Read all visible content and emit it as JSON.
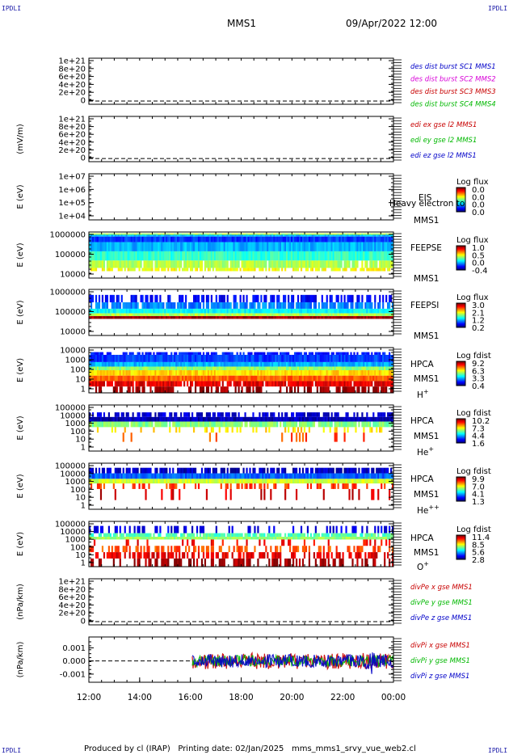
{
  "corner_labels": {
    "tl": "IPDLI",
    "tr": "IPDLI",
    "bl": "IPDLI",
    "br": "IPDLI"
  },
  "header": {
    "spacecraft": "MMS1",
    "datetime": "09/Apr/2022 12:00"
  },
  "footer": {
    "producer": "Produced by cl (IRAP)",
    "printing_date": "Printing date: 02/Jan/2025",
    "filename": "mms_mms1_srvy_vue_web2.cl"
  },
  "chart_data": [
    {
      "id": "p1",
      "type": "line",
      "ylabel": "",
      "yticks": [
        "1e+21",
        "8e+20",
        "6e+20",
        "4e+20",
        "2e+20",
        "0"
      ],
      "legend": [
        {
          "text": "des dist burst SC1 MMS1",
          "color": "#0000c8"
        },
        {
          "text": "des dist burst SC2 MMS2",
          "color": "#d800d8"
        },
        {
          "text": "des dist burst SC3 MMS3",
          "color": "#c80000"
        },
        {
          "text": "des dist burst SC4 MMS4",
          "color": "#00b800"
        }
      ]
    },
    {
      "id": "p2",
      "type": "line",
      "ylabel": "(mV/m)",
      "yticks": [
        "1e+21",
        "8e+20",
        "6e+20",
        "4e+20",
        "2e+20",
        "0"
      ],
      "legend": [
        {
          "text": "edi ex gse l2 MMS1",
          "color": "#c80000"
        },
        {
          "text": "edi ey gse l2 MMS1",
          "color": "#00b800"
        },
        {
          "text": "edi ez gse l2 MMS1",
          "color": "#0000c8"
        }
      ]
    },
    {
      "id": "p3",
      "type": "heatmap",
      "ylabel": "E (eV)",
      "yticks": [
        "1e+07",
        "1e+06",
        "1e+05",
        "1e+04"
      ],
      "labels": [
        "EIS",
        "MMS1"
      ],
      "overlay": "Heavy electron to",
      "cbar_title": "Log flux",
      "cbar_ticks": [
        "0.0",
        "0.0",
        "0.0",
        "0.0"
      ]
    },
    {
      "id": "p4",
      "type": "heatmap",
      "ylabel": "E (eV)",
      "yticks": [
        "1000000",
        "100000",
        "10000"
      ],
      "labels": [
        "FEEPSE",
        "MMS1"
      ],
      "cbar_title": "Log flux",
      "cbar_ticks": [
        "1.0",
        "0.5",
        "0.0",
        "-0.4"
      ]
    },
    {
      "id": "p5",
      "type": "heatmap",
      "ylabel": "E (eV)",
      "yticks": [
        "1000000",
        "100000",
        "10000"
      ],
      "labels": [
        "FEEPSI",
        "MMS1"
      ],
      "cbar_title": "Log flux",
      "cbar_ticks": [
        "3.0",
        "2.1",
        "1.2",
        "0.2"
      ]
    },
    {
      "id": "p6",
      "type": "heatmap",
      "ylabel": "E (eV)",
      "yticks": [
        "10000",
        "1000",
        "100",
        "10",
        "1"
      ],
      "labels": [
        "HPCA",
        "MMS1"
      ],
      "species": "H",
      "species_sup": "+",
      "cbar_title": "Log fdist",
      "cbar_ticks": [
        "9.2",
        "6.3",
        "3.3",
        "0.4"
      ]
    },
    {
      "id": "p7",
      "type": "heatmap",
      "ylabel": "E (eV)",
      "yticks": [
        "100000",
        "10000",
        "1000",
        "100",
        "10",
        "1"
      ],
      "labels": [
        "HPCA",
        "MMS1"
      ],
      "species": "He",
      "species_sup": "+",
      "cbar_title": "Log fdist",
      "cbar_ticks": [
        "10.2",
        "7.3",
        "4.4",
        "1.6"
      ]
    },
    {
      "id": "p8",
      "type": "heatmap",
      "ylabel": "E (eV)",
      "yticks": [
        "100000",
        "10000",
        "1000",
        "100",
        "10",
        "1"
      ],
      "labels": [
        "HPCA",
        "MMS1"
      ],
      "species": "He",
      "species_sup": "++",
      "cbar_title": "Log fdist",
      "cbar_ticks": [
        "9.9",
        "7.0",
        "4.1",
        "1.3"
      ]
    },
    {
      "id": "p9",
      "type": "heatmap",
      "ylabel": "E (eV)",
      "yticks": [
        "100000",
        "10000",
        "1000",
        "100",
        "10",
        "1"
      ],
      "labels": [
        "HPCA",
        "MMS1"
      ],
      "species": "O",
      "species_sup": "+",
      "cbar_title": "Log fdist",
      "cbar_ticks": [
        "11.4",
        "8.5",
        "5.6",
        "2.8"
      ]
    },
    {
      "id": "p10",
      "type": "line",
      "ylabel": "(nPa/km)",
      "yticks": [
        "1e+21",
        "8e+20",
        "6e+20",
        "4e+20",
        "2e+20",
        "0"
      ],
      "legend": [
        {
          "text": "divPe x gse MMS1",
          "color": "#c80000"
        },
        {
          "text": "divPe y gse MMS1",
          "color": "#00b800"
        },
        {
          "text": "divPe z gse MMS1",
          "color": "#0000c8"
        }
      ]
    },
    {
      "id": "p11",
      "type": "line",
      "ylabel": "(nPa/km)",
      "yticks": [
        "0.001",
        "0.000",
        "-0.001"
      ],
      "legend": [
        {
          "text": "divPi x gse MMS1",
          "color": "#c80000"
        },
        {
          "text": "divPi y gse MMS1",
          "color": "#00b800"
        },
        {
          "text": "divPi z gse MMS1",
          "color": "#0000c8"
        }
      ]
    }
  ],
  "xaxis": {
    "ticks": [
      "12:00",
      "14:00",
      "16:00",
      "18:00",
      "20:00",
      "22:00",
      "00:00"
    ]
  }
}
